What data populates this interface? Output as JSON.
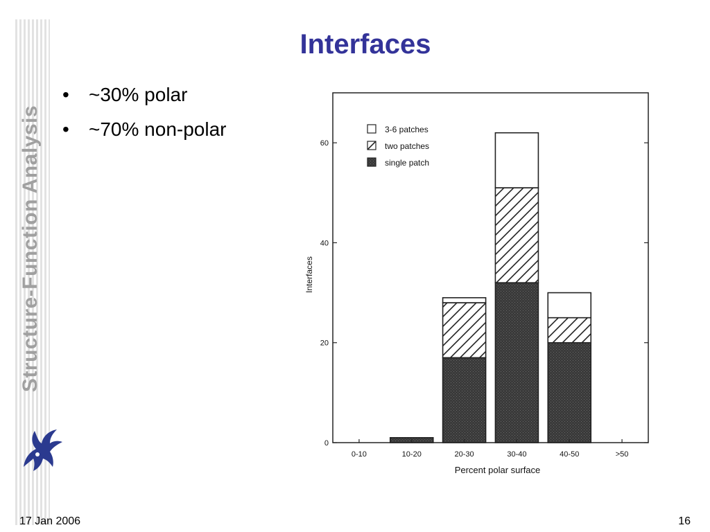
{
  "slide": {
    "title": "Interfaces",
    "side_title": "Structure-Function Analysis",
    "bullets": [
      "~30% polar",
      "~70% non-polar"
    ],
    "bullet_glyph": "•",
    "date": "17 Jan 2006",
    "page_number": "16",
    "logo_icon": "griffin-logo-icon",
    "title_color": "#333399",
    "side_title_color": "#a0a0a0"
  },
  "chart_data": {
    "type": "bar",
    "stacked": true,
    "categories": [
      "0-10",
      "10-20",
      "20-30",
      "30-40",
      "40-50",
      ">50"
    ],
    "series": [
      {
        "name": "single patch",
        "values": [
          0,
          1,
          17,
          32,
          20,
          0
        ],
        "fill": "dark-gray"
      },
      {
        "name": "two patches",
        "values": [
          0,
          0,
          11,
          19,
          5,
          0
        ],
        "fill": "hatched"
      },
      {
        "name": "3-6 patches",
        "values": [
          0,
          0,
          1,
          11,
          5,
          0
        ],
        "fill": "white"
      }
    ],
    "legend_order": [
      "3-6 patches",
      "two patches",
      "single patch"
    ],
    "xlabel": "Percent polar surface",
    "ylabel": "Interfaces",
    "ylim": [
      0,
      70
    ],
    "yticks": [
      0,
      20,
      40,
      60
    ],
    "legend_position": "top-left",
    "grid": false
  }
}
